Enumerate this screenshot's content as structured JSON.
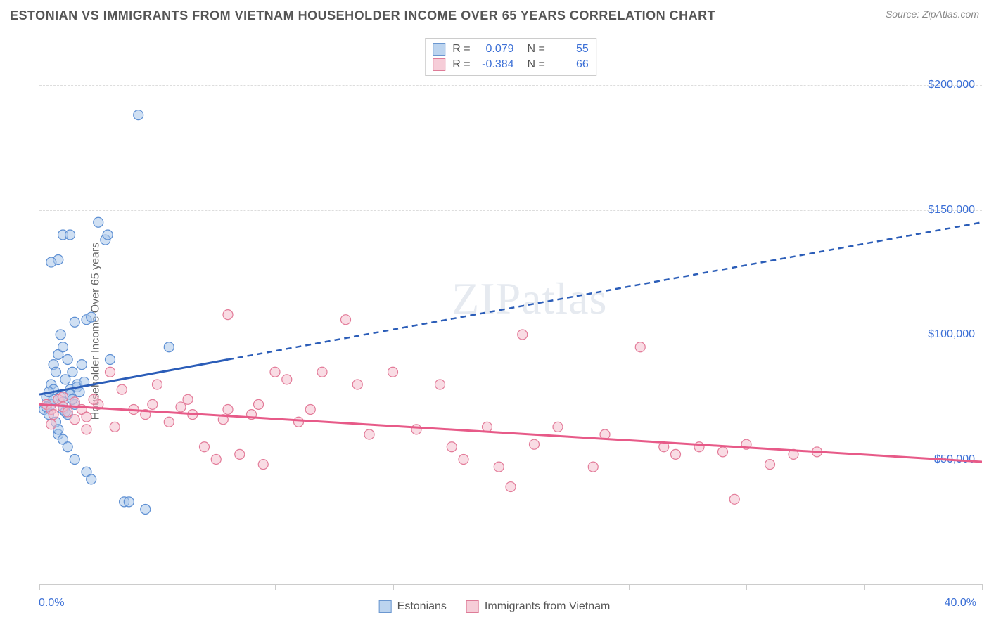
{
  "title": "ESTONIAN VS IMMIGRANTS FROM VIETNAM HOUSEHOLDER INCOME OVER 65 YEARS CORRELATION CHART",
  "source": "Source: ZipAtlas.com",
  "watermark": "ZIPatlas",
  "chart": {
    "type": "scatter",
    "ylabel": "Householder Income Over 65 years",
    "xlim": [
      0,
      40
    ],
    "ylim": [
      0,
      220000
    ],
    "y_ticks": [
      50000,
      100000,
      150000,
      200000
    ],
    "y_tick_labels": [
      "$50,000",
      "$100,000",
      "$150,000",
      "$200,000"
    ],
    "x_ticks": [
      0,
      5,
      10,
      15,
      20,
      25,
      30,
      35,
      40
    ],
    "x_axis_min_label": "0.0%",
    "x_axis_max_label": "40.0%",
    "background_color": "#ffffff",
    "grid_color": "#dddddd",
    "axis_color": "#cccccc",
    "tick_label_color": "#3b6fd6",
    "marker_radius": 7,
    "marker_opacity": 0.55,
    "series": [
      {
        "name": "Estonians",
        "color_fill": "#a9c7ea",
        "color_stroke": "#5d8fd3",
        "legend_swatch_fill": "#bcd4ef",
        "legend_swatch_stroke": "#6b97d0",
        "R": "0.079",
        "N": "55",
        "trend": {
          "solid": {
            "x1": 0,
            "y1": 76000,
            "x2": 8,
            "y2": 90000
          },
          "dashed": {
            "x1": 8,
            "y1": 90000,
            "x2": 40,
            "y2": 145000
          },
          "stroke": "#2b5db8",
          "width": 3,
          "dash": "8,6"
        },
        "points": [
          [
            0.2,
            70000
          ],
          [
            0.3,
            75000
          ],
          [
            0.4,
            68000
          ],
          [
            0.5,
            80000
          ],
          [
            0.5,
            72000
          ],
          [
            0.6,
            88000
          ],
          [
            0.6,
            78000
          ],
          [
            0.7,
            65000
          ],
          [
            0.7,
            85000
          ],
          [
            0.8,
            92000
          ],
          [
            0.8,
            60000
          ],
          [
            0.9,
            100000
          ],
          [
            0.9,
            75000
          ],
          [
            1.0,
            95000
          ],
          [
            1.0,
            70000
          ],
          [
            1.1,
            82000
          ],
          [
            1.2,
            90000
          ],
          [
            1.2,
            68000
          ],
          [
            1.3,
            78000
          ],
          [
            1.4,
            85000
          ],
          [
            1.5,
            105000
          ],
          [
            1.5,
            72000
          ],
          [
            1.6,
            80000
          ],
          [
            1.8,
            88000
          ],
          [
            2.0,
            106000
          ],
          [
            2.2,
            107000
          ],
          [
            0.8,
            130000
          ],
          [
            0.5,
            129000
          ],
          [
            1.0,
            140000
          ],
          [
            1.3,
            140000
          ],
          [
            2.5,
            145000
          ],
          [
            2.8,
            138000
          ],
          [
            2.9,
            140000
          ],
          [
            3.0,
            90000
          ],
          [
            4.2,
            188000
          ],
          [
            5.5,
            95000
          ],
          [
            1.0,
            58000
          ],
          [
            1.2,
            55000
          ],
          [
            1.5,
            50000
          ],
          [
            2.0,
            45000
          ],
          [
            2.2,
            42000
          ],
          [
            3.6,
            33000
          ],
          [
            3.8,
            33000
          ],
          [
            4.5,
            30000
          ],
          [
            0.8,
            62000
          ],
          [
            1.0,
            73000
          ],
          [
            1.3,
            76000
          ],
          [
            1.6,
            79000
          ],
          [
            1.9,
            81000
          ],
          [
            0.6,
            74000
          ],
          [
            0.4,
            77000
          ],
          [
            0.3,
            71000
          ],
          [
            1.1,
            69000
          ],
          [
            1.4,
            74000
          ],
          [
            1.7,
            77000
          ]
        ]
      },
      {
        "name": "Immigrants from Vietnam",
        "color_fill": "#f4c0cd",
        "color_stroke": "#e37b99",
        "legend_swatch_fill": "#f6cdd8",
        "legend_swatch_stroke": "#de7c98",
        "R": "-0.384",
        "N": "66",
        "trend": {
          "solid": {
            "x1": 0,
            "y1": 72000,
            "x2": 40,
            "y2": 49000
          },
          "stroke": "#e75a88",
          "width": 3
        },
        "points": [
          [
            0.3,
            72000
          ],
          [
            0.5,
            70000
          ],
          [
            0.6,
            68000
          ],
          [
            0.8,
            74000
          ],
          [
            1.0,
            71000
          ],
          [
            1.2,
            69000
          ],
          [
            1.5,
            73000
          ],
          [
            1.8,
            70000
          ],
          [
            2.0,
            67000
          ],
          [
            2.5,
            72000
          ],
          [
            3.0,
            85000
          ],
          [
            3.5,
            78000
          ],
          [
            4.0,
            70000
          ],
          [
            4.5,
            68000
          ],
          [
            5.0,
            80000
          ],
          [
            5.5,
            65000
          ],
          [
            6.0,
            71000
          ],
          [
            6.5,
            68000
          ],
          [
            7.0,
            55000
          ],
          [
            7.5,
            50000
          ],
          [
            8.0,
            108000
          ],
          [
            8.0,
            70000
          ],
          [
            8.5,
            52000
          ],
          [
            9.0,
            68000
          ],
          [
            9.5,
            48000
          ],
          [
            10.0,
            85000
          ],
          [
            10.5,
            82000
          ],
          [
            11.0,
            65000
          ],
          [
            12.0,
            85000
          ],
          [
            13.0,
            106000
          ],
          [
            13.5,
            80000
          ],
          [
            14.0,
            60000
          ],
          [
            15.0,
            85000
          ],
          [
            16.0,
            62000
          ],
          [
            17.0,
            80000
          ],
          [
            17.5,
            55000
          ],
          [
            18.0,
            50000
          ],
          [
            19.0,
            63000
          ],
          [
            19.5,
            47000
          ],
          [
            20.0,
            39000
          ],
          [
            20.5,
            100000
          ],
          [
            21.0,
            56000
          ],
          [
            22.0,
            63000
          ],
          [
            23.5,
            47000
          ],
          [
            24.0,
            60000
          ],
          [
            25.5,
            95000
          ],
          [
            26.5,
            55000
          ],
          [
            27.0,
            52000
          ],
          [
            28.0,
            55000
          ],
          [
            29.0,
            53000
          ],
          [
            29.5,
            34000
          ],
          [
            30.0,
            56000
          ],
          [
            31.0,
            48000
          ],
          [
            32.0,
            52000
          ],
          [
            33.0,
            53000
          ],
          [
            0.5,
            64000
          ],
          [
            1.0,
            75000
          ],
          [
            1.5,
            66000
          ],
          [
            2.0,
            62000
          ],
          [
            2.3,
            74000
          ],
          [
            3.2,
            63000
          ],
          [
            4.8,
            72000
          ],
          [
            6.3,
            74000
          ],
          [
            7.8,
            66000
          ],
          [
            9.3,
            72000
          ],
          [
            11.5,
            70000
          ]
        ]
      }
    ]
  },
  "bottom_legend": {
    "items": [
      {
        "label": "Estonians"
      },
      {
        "label": "Immigrants from Vietnam"
      }
    ]
  }
}
